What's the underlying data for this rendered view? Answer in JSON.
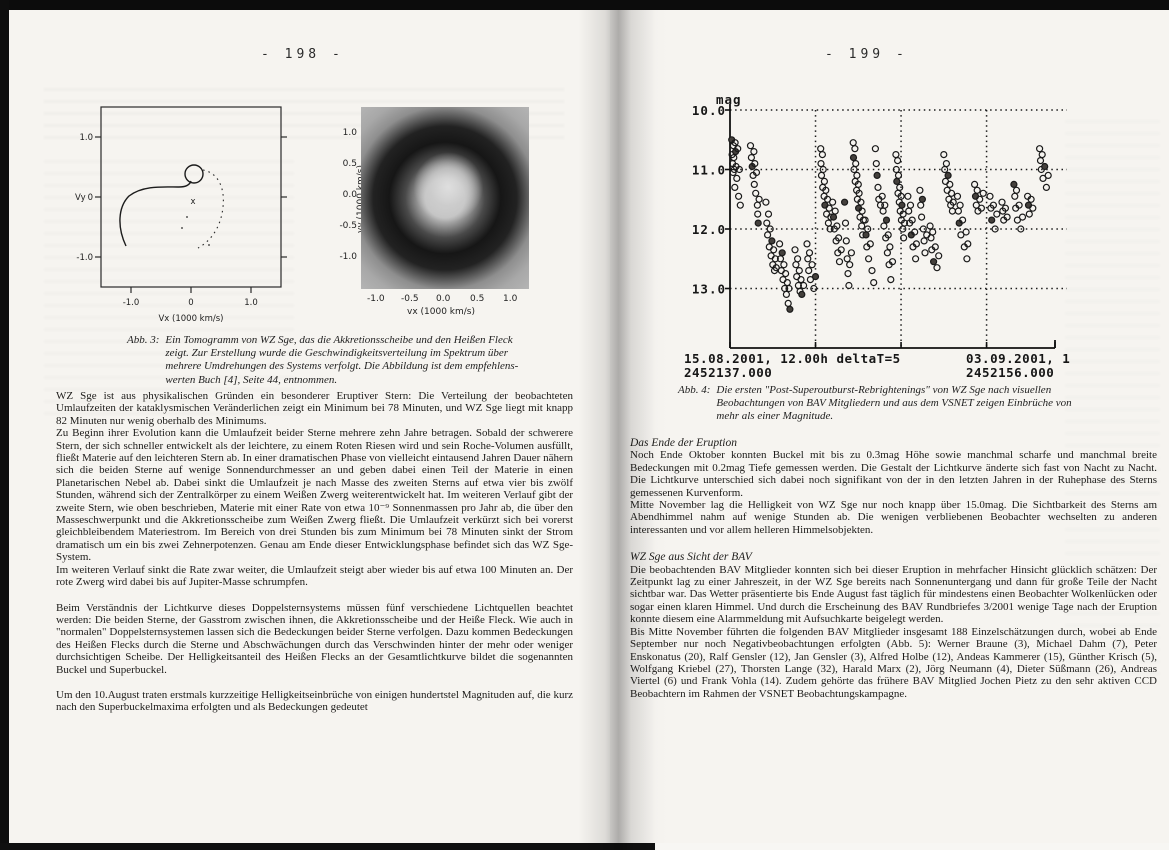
{
  "scan": {
    "left_page_number": "- 198 -",
    "right_page_number": "- 199 -"
  },
  "left_page": {
    "figure3": {
      "panel_a": {
        "ytick_top": "1.0",
        "ytick_mid": "0",
        "y_axis_letter": "Vy",
        "ytick_bottom": "-1.0",
        "xticks": [
          "-1.0",
          "0",
          "1.0"
        ],
        "xlabel": "Vx  (1000 km/s)",
        "marker": "x"
      },
      "panel_b": {
        "yticks": [
          "1.0",
          "0.5",
          "0.0",
          "-0.5",
          "-1.0"
        ],
        "ylabel": "vy (1000 km/s)",
        "xticks": [
          "-1.0",
          "-0.5",
          "0.0",
          "0.5",
          "1.0"
        ],
        "xlabel": "vx (1000 km/s)"
      },
      "caption_label": "Abb. 3:",
      "caption_lines": [
        "Ein Tomogramm von WZ Sge, das die Akkretionsscheibe und den Heißen Fleck",
        "zeigt. Zur Erstellung wurde die Geschwindigkeitsverteilung im Spektrum über",
        "mehrere Umdrehungen des Systems verfolgt. Die Abbildung ist dem empfehlens-",
        "werten Buch [4], Seite 44, entnommen."
      ]
    },
    "paragraphs": {
      "p1": "WZ Sge ist aus physikalischen Gründen ein besonderer Eruptiver Stern: Die Verteilung der beobachteten Umlaufzeiten der kataklysmischen Veränderlichen zeigt ein Minimum bei 78 Minuten, und WZ Sge liegt mit knapp 82 Minuten nur wenig oberhalb des Minimums.",
      "p2": "Zu Beginn ihrer Evolution kann die Umlaufzeit beider Sterne mehrere zehn Jahre betragen. Sobald der schwerere Stern, der sich schneller entwickelt als der leichtere, zu einem Roten Riesen wird und sein Roche-Volumen ausfüllt, fließt Materie auf den leichteren Stern ab. In einer dramatischen Phase von vielleicht eintausend Jahren Dauer nähern sich die beiden Sterne auf wenige Sonnendurchmesser an und geben dabei einen Teil der Materie in einen Planetarischen Nebel ab. Dabei sinkt die Umlaufzeit je nach Masse des zweiten Sterns auf etwa vier bis zwölf Stunden, während sich der Zentralkörper zu einem Weißen Zwerg weiterentwickelt hat. Im weiteren Verlauf gibt der zweite Stern, wie oben beschrieben, Materie mit einer Rate von etwa 10⁻⁹ Sonnenmassen pro Jahr ab, die über den Masseschwerpunkt und die Akkretionsscheibe zum Weißen Zwerg fließt. Die Umlaufzeit verkürzt sich bei vorerst gleichbleibendem Materiestrom. Im Bereich von drei Stunden bis zum Minimum bei 78 Minuten sinkt der Strom dramatisch um ein bis zwei Zehnerpotenzen. Genau am Ende dieser Entwicklungsphase befindet sich das WZ Sge-System.",
      "p3": "Im weiteren Verlauf sinkt die Rate zwar weiter, die Umlaufzeit steigt aber wieder bis auf etwa 100 Minuten an. Der rote Zwerg wird dabei bis auf Jupiter-Masse schrumpfen.",
      "p4": "Beim Verständnis der Lichtkurve dieses Doppelsternsystems müssen fünf verschiedene Lichtquellen beachtet werden: Die beiden Sterne, der Gasstrom zwischen ihnen, die Akkretionsscheibe und der Heiße Fleck. Wie auch in \"normalen\" Doppelsternsystemen lassen sich die Bedeckungen beider Sterne verfolgen. Dazu kommen Bedeckungen des Heißen Flecks durch die Sterne und Abschwächungen durch das Verschwinden hinter der mehr oder weniger durchsichtigen Scheibe. Der Helligkeitsanteil des Heißen Flecks an der Gesamtlichtkurve bildet die sogenannten Buckel und Superbuckel.",
      "p5": "Um den 10.August traten erstmals kurzzeitige Helligkeitseinbrüche von einigen hundertstel Magnituden auf, die kurz nach den Superbuckelmaxima erfolgten und als Bedeckungen gedeutet"
    }
  },
  "right_page": {
    "figure4": {
      "caption_label": "Abb. 4:",
      "caption_lines": [
        "Die ersten \"Post-Superoutburst-Rebrightenings\" von WZ Sge nach visuellen",
        "Beobachtungen von BAV Mitgliedern und aus dem VSNET zeigen Einbrüche von",
        "mehr als einer Magnitude."
      ]
    },
    "heading1": "Das Ende der Eruption",
    "p1": "Noch Ende Oktober konnten Buckel mit bis zu 0.3mag Höhe sowie manchmal scharfe und manchmal breite Bedeckungen mit 0.2mag Tiefe gemessen werden. Die Gestalt der Lichtkurve änderte sich fast von Nacht zu Nacht. Die Lichtkurve unterschied sich dabei noch signifikant von der in den letzten Jahren in der Ruhephase des Sterns gemessenen Kurvenform.",
    "p2": "Mitte November lag die Helligkeit von WZ Sge nur noch knapp über 15.0mag.  Die Sichtbarkeit des Sterns am Abendhimmel nahm auf wenige Stunden ab. Die wenigen verbliebenen Beobachter wechselten zu anderen interessanten und vor allem helleren Himmelsobjekten.",
    "heading2": "WZ Sge aus Sicht der BAV",
    "p3": "Die beobachtenden BAV Mitglieder konnten sich bei dieser Eruption in mehrfacher Hinsicht glücklich schätzen: Der Zeitpunkt lag zu einer Jahreszeit, in der WZ Sge bereits nach Sonnenuntergang und dann für große Teile der Nacht sichtbar war. Das Wetter präsentierte bis Ende August fast täglich für mindestens einen Beobachter Wolkenlücken oder sogar einen klaren Himmel. Und durch die Erscheinung des BAV Rundbriefes 3/2001 wenige Tage nach der Eruption konnte diesem eine Alarmmeldung mit Aufsuchkarte beigelegt werden.",
    "p4": "Bis Mitte November führten die folgenden BAV Mitglieder insgesamt 188 Einzelschätzungen durch, wobei ab Ende September nur noch Negativbeobachtungen erfolgten (Abb. 5): Werner Braune (3), Michael Dahm (7), Peter Enskonatus (20), Ralf Gensler (12), Jan Gensler (3), Alfred Holbe (12), Andeas Kammerer (15), Günther Krisch (5), Wolfgang Kriebel (27), Thorsten Lange (32), Harald Marx (2), Jörg Neumann (4), Dieter Süßmann (26), Andreas Viertel (6) und Frank Vohla (14). Zudem gehörte das frühere BAV Mitglied Jochen Pietz zu den sehr aktiven CCD Beobachtern im Rahmen der VSNET Beobachtungskampagne."
  },
  "chart_data": {
    "type": "scatter",
    "title": "",
    "ylabel": "mag",
    "ytick_labels": [
      "10.0",
      "11.0",
      "12.0",
      "13.0"
    ],
    "yticks": [
      10.0,
      11.0,
      12.0,
      13.0
    ],
    "ylim": [
      10.0,
      14.0
    ],
    "y_inverted_note": "magnitude axis, brighter up",
    "x_jd_range": [
      2452137.0,
      2452156.0
    ],
    "x_span_days": 19,
    "x_gridline_days": [
      5,
      10,
      15
    ],
    "grid": "dotted",
    "legend_position": "none",
    "x_axis_line1_left": "15.08.2001, 12.00h  deltaT=5",
    "x_axis_line1_right": "03.09.2001, 1",
    "x_axis_line2_left": "2452137.000",
    "x_axis_line2_right": "2452156.000",
    "points_day_mag": [
      [
        0.1,
        10.5
      ],
      [
        0.12,
        10.75
      ],
      [
        0.15,
        10.9
      ],
      [
        0.18,
        11.05
      ],
      [
        0.2,
        10.6
      ],
      [
        0.22,
        10.8
      ],
      [
        0.25,
        11.0
      ],
      [
        0.28,
        11.3
      ],
      [
        0.3,
        10.55
      ],
      [
        0.33,
        10.7
      ],
      [
        0.35,
        10.95
      ],
      [
        0.4,
        11.15
      ],
      [
        0.45,
        10.65
      ],
      [
        0.5,
        11.45
      ],
      [
        0.55,
        11.0
      ],
      [
        0.6,
        11.6
      ],
      [
        1.2,
        10.6
      ],
      [
        1.25,
        10.8
      ],
      [
        1.3,
        10.95
      ],
      [
        1.35,
        11.1
      ],
      [
        1.4,
        10.7
      ],
      [
        1.42,
        11.25
      ],
      [
        1.45,
        10.9
      ],
      [
        1.5,
        11.4
      ],
      [
        1.55,
        11.05
      ],
      [
        1.6,
        11.6
      ],
      [
        1.62,
        11.75
      ],
      [
        1.65,
        11.9
      ],
      [
        1.7,
        11.5
      ],
      [
        2.1,
        11.55
      ],
      [
        2.15,
        11.9
      ],
      [
        2.2,
        12.1
      ],
      [
        2.25,
        11.75
      ],
      [
        2.3,
        12.3
      ],
      [
        2.35,
        12.0
      ],
      [
        2.4,
        12.45
      ],
      [
        2.45,
        12.2
      ],
      [
        2.5,
        12.6
      ],
      [
        2.55,
        12.35
      ],
      [
        2.6,
        12.7
      ],
      [
        2.65,
        12.5
      ],
      [
        2.7,
        12.65
      ],
      [
        2.9,
        12.25
      ],
      [
        2.95,
        12.5
      ],
      [
        3.0,
        12.7
      ],
      [
        3.05,
        12.4
      ],
      [
        3.1,
        12.85
      ],
      [
        3.15,
        12.6
      ],
      [
        3.2,
        13.0
      ],
      [
        3.25,
        12.75
      ],
      [
        3.3,
        13.1
      ],
      [
        3.35,
        12.9
      ],
      [
        3.4,
        13.25
      ],
      [
        3.45,
        13.0
      ],
      [
        3.5,
        13.35
      ],
      [
        3.8,
        12.35
      ],
      [
        3.85,
        12.6
      ],
      [
        3.9,
        12.8
      ],
      [
        3.95,
        12.5
      ],
      [
        4.0,
        12.95
      ],
      [
        4.05,
        12.7
      ],
      [
        4.1,
        13.05
      ],
      [
        4.15,
        12.85
      ],
      [
        4.2,
        13.1
      ],
      [
        4.3,
        12.95
      ],
      [
        4.5,
        12.25
      ],
      [
        4.55,
        12.5
      ],
      [
        4.6,
        12.7
      ],
      [
        4.65,
        12.4
      ],
      [
        4.7,
        12.85
      ],
      [
        4.8,
        12.6
      ],
      [
        4.9,
        13.0
      ],
      [
        5.0,
        12.8
      ],
      [
        5.3,
        10.65
      ],
      [
        5.32,
        10.9
      ],
      [
        5.35,
        11.1
      ],
      [
        5.4,
        10.75
      ],
      [
        5.42,
        11.3
      ],
      [
        5.45,
        11.0
      ],
      [
        5.5,
        11.45
      ],
      [
        5.52,
        11.2
      ],
      [
        5.55,
        11.6
      ],
      [
        5.6,
        11.35
      ],
      [
        5.65,
        11.75
      ],
      [
        5.7,
        11.5
      ],
      [
        5.75,
        11.9
      ],
      [
        5.8,
        11.65
      ],
      [
        5.85,
        12.0
      ],
      [
        5.9,
        11.8
      ],
      [
        6.0,
        11.55
      ],
      [
        6.05,
        11.8
      ],
      [
        6.1,
        12.0
      ],
      [
        6.15,
        11.7
      ],
      [
        6.2,
        12.2
      ],
      [
        6.25,
        11.95
      ],
      [
        6.3,
        12.4
      ],
      [
        6.35,
        12.15
      ],
      [
        6.4,
        12.55
      ],
      [
        6.5,
        12.35
      ],
      [
        6.7,
        11.55
      ],
      [
        6.75,
        11.9
      ],
      [
        6.8,
        12.2
      ],
      [
        6.85,
        12.5
      ],
      [
        6.9,
        12.75
      ],
      [
        6.95,
        12.95
      ],
      [
        7.0,
        12.6
      ],
      [
        7.1,
        12.4
      ],
      [
        7.2,
        10.55
      ],
      [
        7.22,
        10.8
      ],
      [
        7.25,
        11.0
      ],
      [
        7.3,
        10.65
      ],
      [
        7.32,
        11.2
      ],
      [
        7.35,
        10.9
      ],
      [
        7.4,
        11.35
      ],
      [
        7.42,
        11.1
      ],
      [
        7.45,
        11.5
      ],
      [
        7.5,
        11.25
      ],
      [
        7.52,
        11.65
      ],
      [
        7.55,
        11.4
      ],
      [
        7.6,
        11.8
      ],
      [
        7.65,
        11.55
      ],
      [
        7.7,
        11.95
      ],
      [
        7.72,
        11.7
      ],
      [
        7.75,
        12.1
      ],
      [
        7.8,
        11.85
      ],
      [
        7.9,
        11.85
      ],
      [
        7.95,
        12.1
      ],
      [
        8.0,
        12.3
      ],
      [
        8.05,
        12.0
      ],
      [
        8.1,
        12.5
      ],
      [
        8.2,
        12.25
      ],
      [
        8.3,
        12.7
      ],
      [
        8.4,
        12.9
      ],
      [
        8.5,
        10.65
      ],
      [
        8.55,
        10.9
      ],
      [
        8.6,
        11.1
      ],
      [
        8.65,
        11.3
      ],
      [
        8.7,
        11.5
      ],
      [
        8.8,
        11.6
      ],
      [
        8.9,
        11.45
      ],
      [
        8.95,
        11.7
      ],
      [
        9.0,
        11.95
      ],
      [
        9.05,
        11.6
      ],
      [
        9.1,
        12.15
      ],
      [
        9.15,
        11.85
      ],
      [
        9.2,
        12.4
      ],
      [
        9.25,
        12.1
      ],
      [
        9.3,
        12.6
      ],
      [
        9.35,
        12.3
      ],
      [
        9.4,
        12.85
      ],
      [
        9.5,
        12.55
      ],
      [
        9.7,
        10.75
      ],
      [
        9.72,
        11.0
      ],
      [
        9.75,
        11.2
      ],
      [
        9.8,
        10.85
      ],
      [
        9.82,
        11.4
      ],
      [
        9.85,
        11.1
      ],
      [
        9.9,
        11.55
      ],
      [
        9.92,
        11.3
      ],
      [
        9.95,
        11.7
      ],
      [
        10.0,
        11.45
      ],
      [
        10.02,
        11.85
      ],
      [
        10.05,
        11.6
      ],
      [
        10.1,
        12.0
      ],
      [
        10.12,
        11.75
      ],
      [
        10.15,
        12.15
      ],
      [
        10.2,
        11.9
      ],
      [
        10.4,
        11.45
      ],
      [
        10.45,
        11.7
      ],
      [
        10.5,
        11.9
      ],
      [
        10.55,
        11.6
      ],
      [
        10.6,
        12.1
      ],
      [
        10.65,
        11.85
      ],
      [
        10.7,
        12.3
      ],
      [
        10.8,
        12.05
      ],
      [
        10.85,
        12.5
      ],
      [
        10.9,
        12.25
      ],
      [
        11.1,
        11.35
      ],
      [
        11.15,
        11.6
      ],
      [
        11.2,
        11.8
      ],
      [
        11.25,
        11.5
      ],
      [
        11.3,
        12.0
      ],
      [
        11.35,
        12.2
      ],
      [
        11.4,
        12.4
      ],
      [
        11.5,
        12.1
      ],
      [
        11.7,
        11.95
      ],
      [
        11.75,
        12.15
      ],
      [
        11.8,
        12.35
      ],
      [
        11.85,
        12.05
      ],
      [
        11.9,
        12.55
      ],
      [
        12.0,
        12.3
      ],
      [
        12.1,
        12.65
      ],
      [
        12.2,
        12.45
      ],
      [
        12.5,
        10.75
      ],
      [
        12.55,
        11.0
      ],
      [
        12.6,
        11.2
      ],
      [
        12.65,
        10.9
      ],
      [
        12.7,
        11.35
      ],
      [
        12.75,
        11.1
      ],
      [
        12.8,
        11.5
      ],
      [
        12.85,
        11.25
      ],
      [
        12.9,
        11.6
      ],
      [
        12.95,
        11.4
      ],
      [
        13.0,
        11.7
      ],
      [
        13.05,
        11.55
      ],
      [
        13.3,
        11.45
      ],
      [
        13.35,
        11.7
      ],
      [
        13.4,
        11.9
      ],
      [
        13.45,
        11.6
      ],
      [
        13.5,
        12.1
      ],
      [
        13.6,
        11.85
      ],
      [
        13.7,
        12.3
      ],
      [
        13.8,
        12.05
      ],
      [
        13.85,
        12.5
      ],
      [
        13.9,
        12.25
      ],
      [
        14.3,
        11.25
      ],
      [
        14.35,
        11.45
      ],
      [
        14.4,
        11.6
      ],
      [
        14.45,
        11.35
      ],
      [
        14.5,
        11.7
      ],
      [
        14.6,
        11.5
      ],
      [
        14.7,
        11.65
      ],
      [
        14.8,
        11.4
      ],
      [
        15.2,
        11.45
      ],
      [
        15.25,
        11.65
      ],
      [
        15.3,
        11.85
      ],
      [
        15.4,
        11.6
      ],
      [
        15.5,
        12.0
      ],
      [
        15.6,
        11.75
      ],
      [
        15.9,
        11.55
      ],
      [
        15.95,
        11.7
      ],
      [
        16.0,
        11.85
      ],
      [
        16.1,
        11.65
      ],
      [
        16.2,
        11.8
      ],
      [
        16.6,
        11.25
      ],
      [
        16.65,
        11.45
      ],
      [
        16.7,
        11.65
      ],
      [
        16.75,
        11.35
      ],
      [
        16.8,
        11.85
      ],
      [
        16.9,
        11.6
      ],
      [
        17.0,
        12.0
      ],
      [
        17.1,
        11.8
      ],
      [
        17.4,
        11.45
      ],
      [
        17.45,
        11.6
      ],
      [
        17.5,
        11.75
      ],
      [
        17.6,
        11.5
      ],
      [
        17.7,
        11.65
      ],
      [
        18.1,
        10.65
      ],
      [
        18.15,
        10.85
      ],
      [
        18.2,
        11.0
      ],
      [
        18.25,
        10.75
      ],
      [
        18.3,
        11.15
      ],
      [
        18.4,
        10.95
      ],
      [
        18.5,
        11.3
      ],
      [
        18.6,
        11.1
      ]
    ]
  }
}
